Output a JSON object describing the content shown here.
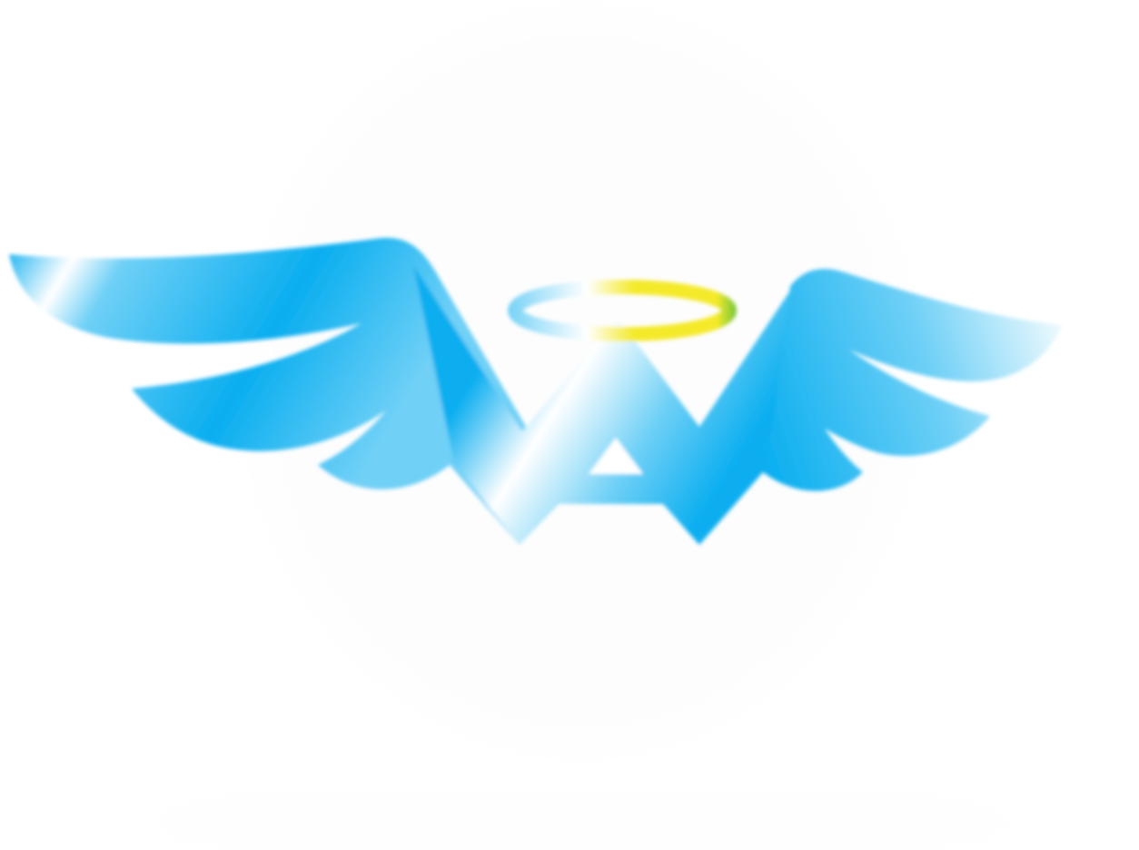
{
  "logo": {
    "icon": "winged-a-angel-logo",
    "colors": {
      "primary_blue": "#0aaef0",
      "light_blue": "#6fd0f6",
      "highlight": "#ffffff",
      "halo_yellow": "#f4ea2a",
      "halo_green": "#5bbf3a",
      "backdrop": "#fdfdfd"
    }
  }
}
